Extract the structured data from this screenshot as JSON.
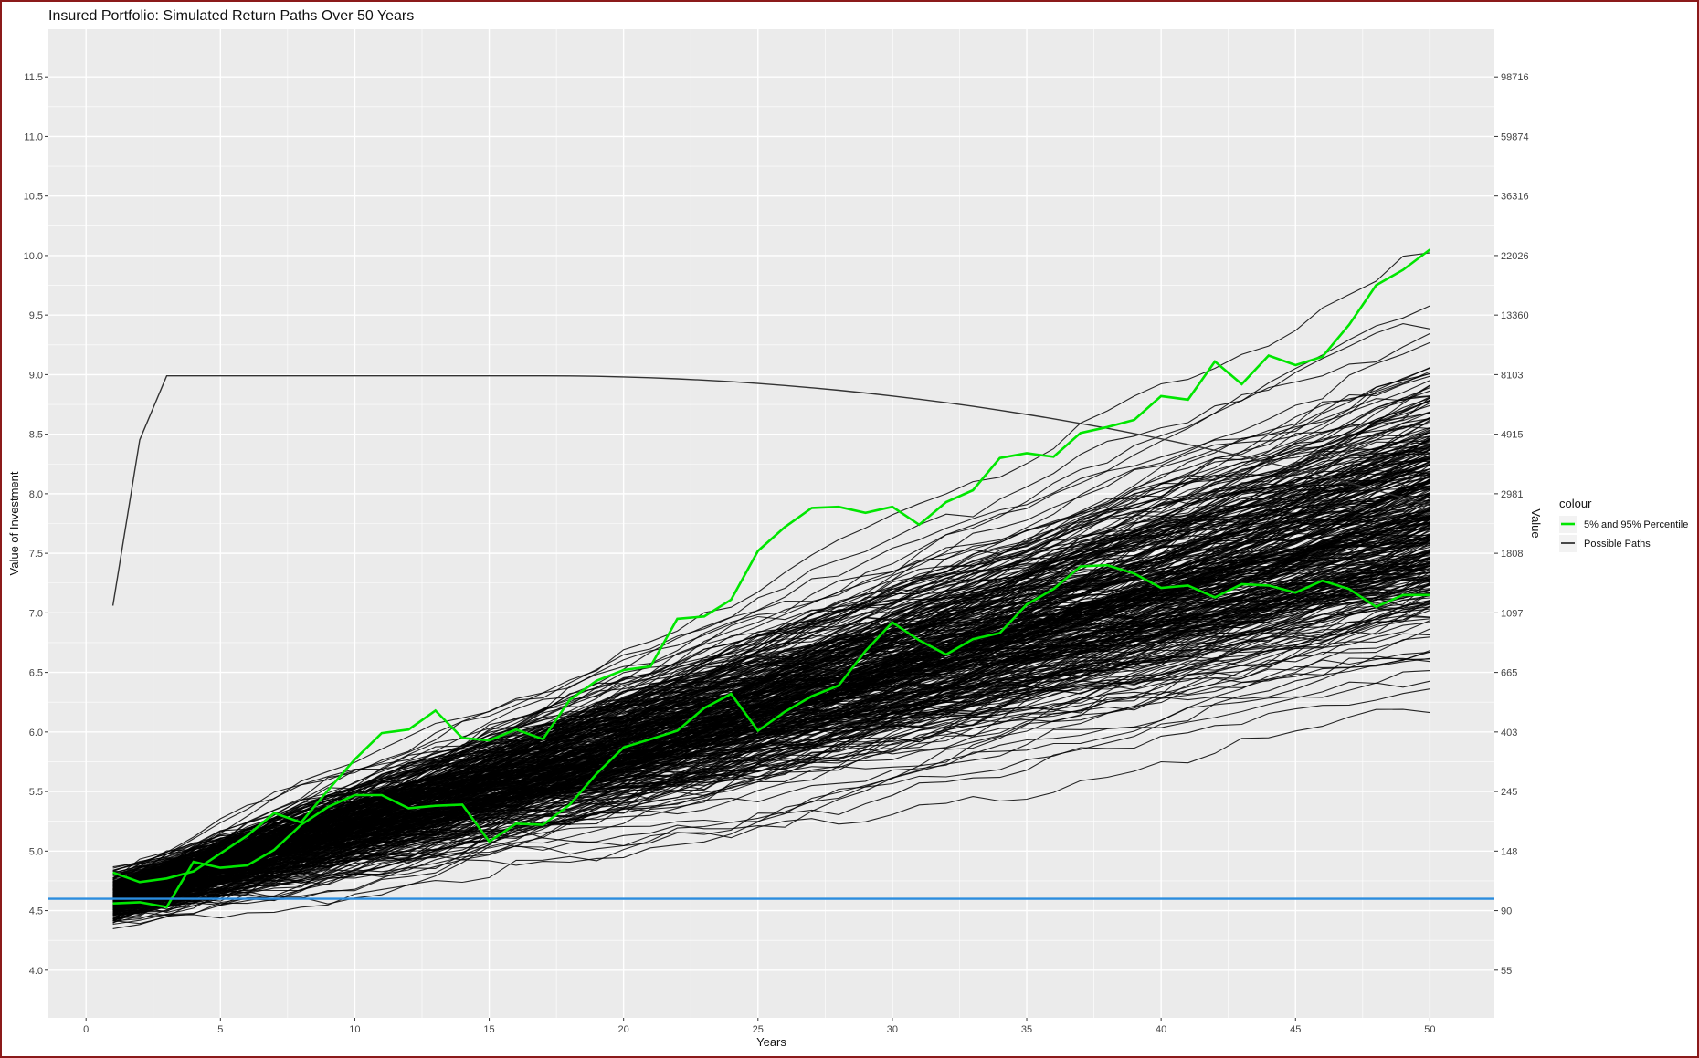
{
  "chart_data": {
    "type": "line",
    "title": "Insured  Portfolio: Simulated Return Paths Over 50 Years",
    "xlabel": "Years",
    "ylabel": "Value of Investment",
    "y2label": "Value",
    "xlim": [
      -1.4,
      52.4
    ],
    "ylim": [
      3.6,
      11.9
    ],
    "x_ticks": [
      0,
      5,
      10,
      15,
      20,
      25,
      30,
      35,
      40,
      45,
      50
    ],
    "y_ticks": [
      4.0,
      4.5,
      5.0,
      5.5,
      6.0,
      6.5,
      7.0,
      7.5,
      8.0,
      8.5,
      9.0,
      9.5,
      10.0,
      10.5,
      11.0,
      11.5
    ],
    "y_tick_labels": [
      "4.0",
      "4.5",
      "5.0",
      "5.5",
      "6.0",
      "6.5",
      "7.0",
      "7.5",
      "8.0",
      "8.5",
      "9.0",
      "9.5",
      "10.0",
      "10.5",
      "11.0",
      "11.5"
    ],
    "y2_tick_labels": [
      "55",
      "90",
      "148",
      "245",
      "403",
      "665",
      "1097",
      "1808",
      "2981",
      "4915",
      "8103",
      "13360",
      "22026",
      "36316",
      "59874",
      "98716"
    ],
    "grid": true,
    "legend": {
      "title": "colour",
      "placement": "right",
      "entries": [
        {
          "label": "5% and 95% Percentile",
          "color": "#00e600"
        },
        {
          "label": "Possible Paths",
          "color": "#000000"
        }
      ]
    },
    "hline": {
      "y": 4.6,
      "color": "#2b8cde"
    },
    "colors": {
      "panel": "#ebebeb",
      "grid_major": "#ffffff",
      "paths": "#000000",
      "percentile": "#00e600"
    },
    "series": [
      {
        "name": "95% Percentile",
        "x": [
          1,
          2,
          3,
          4,
          5,
          6,
          7,
          8,
          9,
          10,
          11,
          12,
          13,
          14,
          15,
          16,
          17,
          18,
          19,
          20,
          21,
          22,
          23,
          24,
          25,
          26,
          27,
          28,
          29,
          30,
          31,
          32,
          33,
          34,
          35,
          36,
          37,
          38,
          39,
          40,
          41,
          42,
          43,
          44,
          45,
          46,
          47,
          48,
          49,
          50
        ],
        "values": [
          4.82,
          4.74,
          4.77,
          4.83,
          4.98,
          5.13,
          5.32,
          5.24,
          5.51,
          5.77,
          5.99,
          6.02,
          6.18,
          5.95,
          5.93,
          6.02,
          5.94,
          6.27,
          6.43,
          6.52,
          6.55,
          6.95,
          6.97,
          7.11,
          7.52,
          7.72,
          7.88,
          7.89,
          7.84,
          7.89,
          7.74,
          7.93,
          8.03,
          8.3,
          8.34,
          8.31,
          8.51,
          8.56,
          8.62,
          8.82,
          8.79,
          9.11,
          8.92,
          9.16,
          9.08,
          9.15,
          9.42,
          9.75,
          9.88,
          10.05
        ]
      },
      {
        "name": "5% Percentile",
        "x": [
          1,
          2,
          3,
          4,
          5,
          6,
          7,
          8,
          9,
          10,
          11,
          12,
          13,
          14,
          15,
          16,
          17,
          18,
          19,
          20,
          21,
          22,
          23,
          24,
          25,
          26,
          27,
          28,
          29,
          30,
          31,
          32,
          33,
          34,
          35,
          36,
          37,
          38,
          39,
          40,
          41,
          42,
          43,
          44,
          45,
          46,
          47,
          48,
          49,
          50
        ],
        "values": [
          4.56,
          4.57,
          4.53,
          4.91,
          4.86,
          4.88,
          5.01,
          5.22,
          5.37,
          5.47,
          5.47,
          5.36,
          5.38,
          5.39,
          5.08,
          5.23,
          5.22,
          5.39,
          5.65,
          5.87,
          5.94,
          6.01,
          6.2,
          6.32,
          6.01,
          6.17,
          6.3,
          6.39,
          6.68,
          6.92,
          6.77,
          6.65,
          6.78,
          6.83,
          7.07,
          7.2,
          7.39,
          7.4,
          7.33,
          7.21,
          7.23,
          7.13,
          7.24,
          7.23,
          7.17,
          7.27,
          7.2,
          7.05,
          7.15,
          7.15
        ]
      }
    ]
  }
}
